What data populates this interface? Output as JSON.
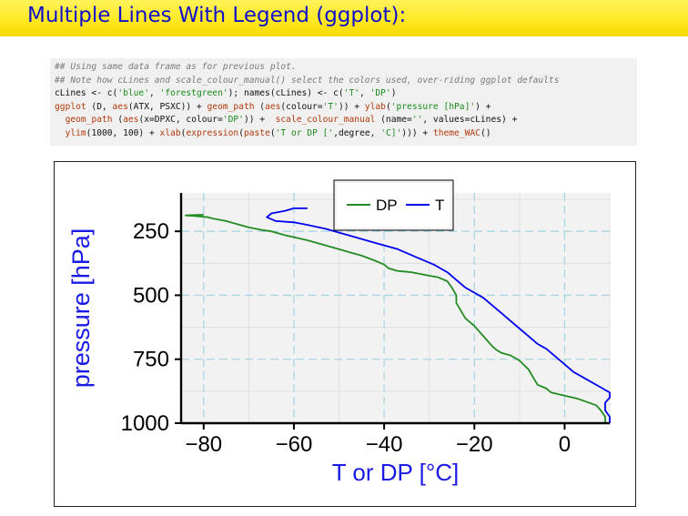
{
  "slide": {
    "title": "Multiple Lines With Legend (ggplot):"
  },
  "code": {
    "lines": [
      [
        {
          "t": "## Using same data frame as for previous plot.",
          "c": "cm"
        }
      ],
      [
        {
          "t": "## Note how cLines and scale_colour_manual() select the colors used, over-riding ggplot defaults",
          "c": "cm"
        }
      ],
      [
        {
          "t": "cLines <- c(",
          "c": "kw"
        },
        {
          "t": "'blue'",
          "c": "str"
        },
        {
          "t": ", ",
          "c": "kw"
        },
        {
          "t": "'forestgreen'",
          "c": "str"
        },
        {
          "t": "); names(cLines) <- c(",
          "c": "kw"
        },
        {
          "t": "'T'",
          "c": "str"
        },
        {
          "t": ", ",
          "c": "kw"
        },
        {
          "t": "'DP'",
          "c": "str"
        },
        {
          "t": ")",
          "c": "kw"
        }
      ],
      [
        {
          "t": "ggplot",
          "c": "fn"
        },
        {
          "t": " (D, ",
          "c": "kw"
        },
        {
          "t": "aes",
          "c": "fn"
        },
        {
          "t": "(ATX, PSXC)) + ",
          "c": "kw"
        },
        {
          "t": "geom_path",
          "c": "fn"
        },
        {
          "t": " (",
          "c": "kw"
        },
        {
          "t": "aes",
          "c": "fn"
        },
        {
          "t": "(colour=",
          "c": "kw"
        },
        {
          "t": "'T'",
          "c": "str"
        },
        {
          "t": ")) + ",
          "c": "kw"
        },
        {
          "t": "ylab",
          "c": "fn"
        },
        {
          "t": "(",
          "c": "kw"
        },
        {
          "t": "'pressure [hPa]'",
          "c": "str"
        },
        {
          "t": ") +",
          "c": "kw"
        }
      ],
      [
        {
          "t": "  ",
          "c": "kw"
        },
        {
          "t": "geom_path",
          "c": "fn"
        },
        {
          "t": " (",
          "c": "kw"
        },
        {
          "t": "aes",
          "c": "fn"
        },
        {
          "t": "(x=DPXC, colour=",
          "c": "kw"
        },
        {
          "t": "'DP'",
          "c": "str"
        },
        {
          "t": ")) +  ",
          "c": "kw"
        },
        {
          "t": "scale_colour_manual",
          "c": "fn"
        },
        {
          "t": " (name=",
          "c": "kw"
        },
        {
          "t": "''",
          "c": "str"
        },
        {
          "t": ", values=cLines) +",
          "c": "kw"
        }
      ],
      [
        {
          "t": "  ",
          "c": "kw"
        },
        {
          "t": "ylim",
          "c": "fn"
        },
        {
          "t": "(1000, 100) + ",
          "c": "kw"
        },
        {
          "t": "xlab",
          "c": "fn"
        },
        {
          "t": "(",
          "c": "kw"
        },
        {
          "t": "expression",
          "c": "fn"
        },
        {
          "t": "(",
          "c": "kw"
        },
        {
          "t": "paste",
          "c": "fn"
        },
        {
          "t": "(",
          "c": "kw"
        },
        {
          "t": "'T or DP ['",
          "c": "str"
        },
        {
          "t": ",degree, ",
          "c": "kw"
        },
        {
          "t": "'C]'",
          "c": "str"
        },
        {
          "t": "))) + ",
          "c": "kw"
        },
        {
          "t": "theme_WAC",
          "c": "fn"
        },
        {
          "t": "()",
          "c": "kw"
        }
      ]
    ]
  },
  "chart_data": {
    "type": "line",
    "xlabel": "T or DP [°C]",
    "ylabel": "pressure [hPa]",
    "xlim": [
      -85,
      10
    ],
    "ylim": [
      1000,
      100
    ],
    "y_reversed": true,
    "x_ticks": [
      -80,
      -60,
      -40,
      -20,
      0
    ],
    "x_tick_labels": [
      "−80",
      "−60",
      "−40",
      "−20",
      "0"
    ],
    "y_ticks": [
      250,
      500,
      750,
      1000
    ],
    "y_tick_labels": [
      "250",
      "500",
      "750",
      "1000"
    ],
    "grid": true,
    "legend_position": "top",
    "colors": {
      "T": "#0000ee",
      "DP": "#228b22",
      "ylabel": "#1a1ae6",
      "xlabel": "#1a1ae6",
      "panel": "#f2f2f2",
      "grid": "#a8d6e6"
    },
    "series": [
      {
        "name": "DP",
        "color": "#228b22",
        "x": [
          9,
          9,
          9,
          8,
          7,
          3,
          -3,
          -4,
          -6,
          -7,
          -8,
          -10,
          -12,
          -14,
          -15,
          -16,
          -17,
          -18,
          -19,
          -20,
          -22,
          -23,
          -24,
          -24,
          -25,
          -26,
          -28,
          -31,
          -34,
          -37,
          -38,
          -39,
          -40,
          -42,
          -45,
          -49,
          -53,
          -57,
          -62,
          -65,
          -67,
          -70,
          -72,
          -75,
          -78,
          -79,
          -82,
          -84,
          -80
        ],
        "y": [
          1000,
          990,
          975,
          950,
          930,
          905,
          880,
          865,
          850,
          820,
          790,
          755,
          735,
          725,
          715,
          700,
          680,
          660,
          640,
          620,
          590,
          560,
          530,
          500,
          470,
          445,
          430,
          420,
          410,
          405,
          400,
          395,
          380,
          365,
          345,
          325,
          305,
          285,
          265,
          250,
          245,
          235,
          225,
          210,
          200,
          195,
          190,
          188,
          185
        ]
      },
      {
        "name": "T",
        "color": "#0000ee",
        "x": [
          10,
          10,
          9,
          9,
          10,
          10,
          8,
          5,
          2,
          0,
          -2,
          -4,
          -5,
          -6,
          -8,
          -10,
          -12,
          -14,
          -16,
          -18,
          -20,
          -22,
          -24,
          -26,
          -29,
          -33,
          -37,
          -41,
          -45,
          -49,
          -53,
          -57,
          -60,
          -64,
          -66,
          -65,
          -62,
          -60,
          -57
        ],
        "y": [
          1000,
          975,
          950,
          920,
          900,
          880,
          860,
          830,
          800,
          770,
          740,
          710,
          700,
          690,
          660,
          630,
          600,
          570,
          540,
          510,
          490,
          470,
          440,
          410,
          380,
          350,
          320,
          300,
          280,
          260,
          240,
          225,
          215,
          210,
          195,
          180,
          170,
          160,
          160
        ]
      }
    ]
  }
}
